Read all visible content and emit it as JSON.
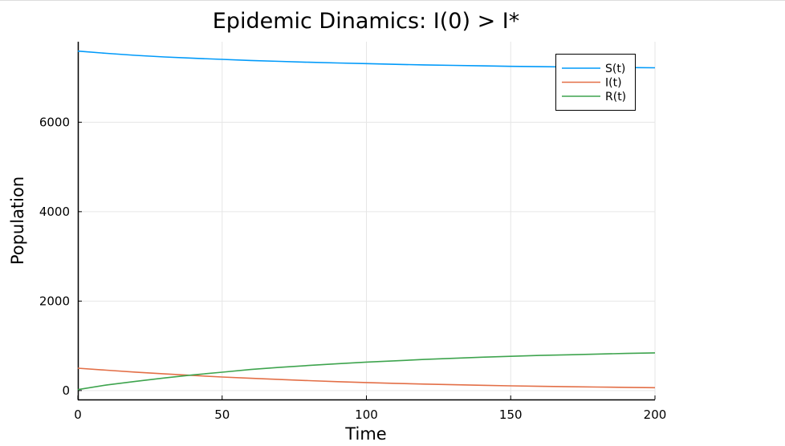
{
  "chart_data": {
    "type": "line",
    "title": "Epidemic Dinamics: I(0) > I*",
    "xlabel": "Time",
    "ylabel": "Population",
    "xlim": [
      0,
      200
    ],
    "ylim": [
      -200,
      7800
    ],
    "xticks": [
      0,
      50,
      100,
      150,
      200
    ],
    "xtick_labels": [
      "0",
      "50",
      "100",
      "150",
      "200"
    ],
    "yticks": [
      0,
      2000,
      4000,
      6000
    ],
    "ytick_labels": [
      "0",
      "2000",
      "4000",
      "6000"
    ],
    "grid": true,
    "legend_position": "top-right",
    "x": [
      0,
      10,
      20,
      30,
      40,
      50,
      60,
      70,
      80,
      90,
      100,
      110,
      120,
      130,
      140,
      150,
      160,
      170,
      180,
      190,
      200
    ],
    "series": [
      {
        "name": "S(t)",
        "color": "#009AFA",
        "values": [
          7590,
          7540,
          7495,
          7460,
          7430,
          7405,
          7380,
          7360,
          7340,
          7325,
          7310,
          7295,
          7282,
          7270,
          7260,
          7250,
          7242,
          7235,
          7228,
          7222,
          7217
        ]
      },
      {
        "name": "I(t)",
        "color": "#E36F47",
        "values": [
          500,
          455,
          412,
          372,
          336,
          303,
          273,
          246,
          221,
          199,
          179,
          161,
          145,
          130,
          117,
          105,
          95,
          86,
          78,
          70,
          63
        ]
      },
      {
        "name": "R(t)",
        "color": "#3EA44E",
        "values": [
          20,
          125,
          205,
          280,
          350,
          410,
          470,
          520,
          560,
          600,
          635,
          665,
          695,
          720,
          745,
          765,
          785,
          800,
          815,
          830,
          842
        ]
      }
    ]
  }
}
